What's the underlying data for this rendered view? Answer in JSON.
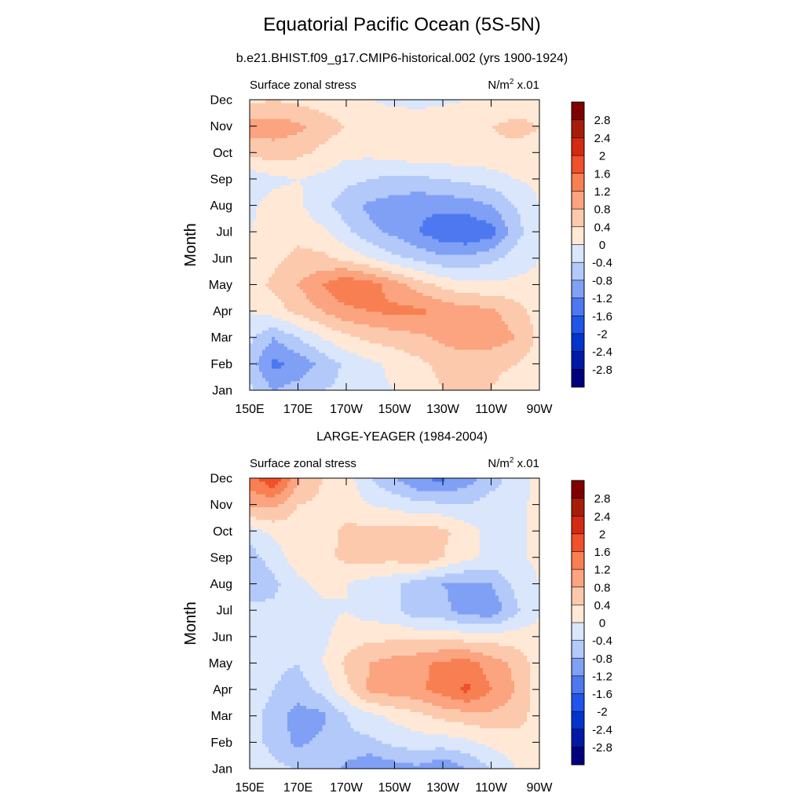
{
  "title": "Equatorial Pacific Ocean (5S-5N)",
  "colors": {
    "levels": [
      -2.8,
      -2.4,
      -2.0,
      -1.6,
      -1.2,
      -0.8,
      -0.4,
      0,
      0.4,
      0.8,
      1.2,
      1.6,
      2.0,
      2.4,
      2.8
    ],
    "fills": [
      "#00007f",
      "#001aa6",
      "#0034cc",
      "#1f55ea",
      "#4d78f0",
      "#7fa0f5",
      "#b3c9fa",
      "#d9e6fc",
      "#ffe8d6",
      "#fcc9ad",
      "#fba47f",
      "#f87f52",
      "#f0502a",
      "#d42a12",
      "#a81d0a",
      "#800000"
    ]
  },
  "chart_data": [
    {
      "type": "heatmap",
      "title": "b.e21.BHIST.f09_g17.CMIP6-historical.002 (yrs 1900-1924)",
      "left_string": "Surface zonal stress",
      "right_string": "N/m",
      "right_string_sup": "2",
      "right_string_tail": " x.01",
      "ylabel": "Month",
      "x_tick_labels": [
        "150E",
        "170E",
        "170W",
        "150W",
        "130W",
        "110W",
        "90W"
      ],
      "y_tick_labels": [
        "Jan",
        "Feb",
        "Mar",
        "Apr",
        "May",
        "Jun",
        "Jul",
        "Aug",
        "Sep",
        "Oct",
        "Nov",
        "Dec"
      ],
      "colorbar_labels": [
        "2.8",
        "2.4",
        "2",
        "1.6",
        "1.2",
        "0.8",
        "0.4",
        "0",
        "-0.4",
        "-0.8",
        "-1.2",
        "-1.6",
        "-2",
        "-2.4",
        "-2.8"
      ],
      "x": [
        150,
        160,
        170,
        180,
        190,
        200,
        210,
        220,
        230,
        240,
        250,
        260,
        270
      ],
      "y": [
        "Jan",
        "Feb",
        "Mar",
        "Apr",
        "May",
        "Jun",
        "Jul",
        "Aug",
        "Sep",
        "Oct",
        "Nov",
        "Dec"
      ],
      "z": [
        [
          -0.3,
          -0.8,
          -0.6,
          -0.4,
          -0.3,
          -0.1,
          0.0,
          0.2,
          0.4,
          0.4,
          0.4,
          0.2,
          0.1
        ],
        [
          -0.6,
          -1.3,
          -1.1,
          -0.7,
          -0.3,
          -0.1,
          0.1,
          0.3,
          0.5,
          0.6,
          0.5,
          0.4,
          0.2
        ],
        [
          -0.3,
          -0.8,
          -0.4,
          0.0,
          0.3,
          0.5,
          0.6,
          0.7,
          0.9,
          1.0,
          1.0,
          0.8,
          0.3
        ],
        [
          0.0,
          0.2,
          0.5,
          0.8,
          1.1,
          1.2,
          1.3,
          1.3,
          1.1,
          1.0,
          0.9,
          0.6,
          0.2
        ],
        [
          0.2,
          0.5,
          0.8,
          1.2,
          1.6,
          1.4,
          1.0,
          0.6,
          0.3,
          0.1,
          0.1,
          0.1,
          0.1
        ],
        [
          0.1,
          0.3,
          0.5,
          0.5,
          0.3,
          0.0,
          -0.3,
          -0.5,
          -0.7,
          -0.7,
          -0.5,
          -0.2,
          0.0
        ],
        [
          0.0,
          0.2,
          0.3,
          0.1,
          -0.3,
          -0.7,
          -0.9,
          -1.2,
          -1.5,
          -1.6,
          -1.4,
          -0.6,
          0.0
        ],
        [
          -0.1,
          0.2,
          0.1,
          -0.3,
          -0.6,
          -0.9,
          -1.0,
          -1.1,
          -1.1,
          -1.0,
          -0.8,
          -0.4,
          0.0
        ],
        [
          -0.3,
          -0.1,
          0.0,
          -0.1,
          -0.3,
          -0.4,
          -0.5,
          -0.5,
          -0.4,
          -0.3,
          -0.2,
          0.0,
          0.1
        ],
        [
          0.5,
          0.6,
          0.5,
          0.3,
          0.1,
          0.1,
          0.2,
          0.3,
          0.3,
          0.3,
          0.3,
          0.3,
          0.3
        ],
        [
          1.0,
          1.0,
          0.9,
          0.6,
          0.4,
          0.3,
          0.3,
          0.4,
          0.4,
          0.4,
          0.4,
          0.5,
          0.4
        ],
        [
          0.3,
          0.4,
          0.3,
          0.2,
          0.1,
          0.0,
          -0.1,
          -0.2,
          -0.1,
          0.0,
          0.1,
          0.2,
          0.2
        ]
      ]
    },
    {
      "type": "heatmap",
      "title": "LARGE-YEAGER (1984-2004)",
      "left_string": "Surface zonal stress",
      "right_string": "N/m",
      "right_string_sup": "2",
      "right_string_tail": " x.01",
      "ylabel": "Month",
      "x_tick_labels": [
        "150E",
        "170E",
        "170W",
        "150W",
        "130W",
        "110W",
        "90W"
      ],
      "y_tick_labels": [
        "Jan",
        "Feb",
        "Mar",
        "Apr",
        "May",
        "Jun",
        "Jul",
        "Aug",
        "Sep",
        "Oct",
        "Nov",
        "Dec"
      ],
      "colorbar_labels": [
        "2.8",
        "2.4",
        "2",
        "1.6",
        "1.2",
        "0.8",
        "0.4",
        "0",
        "-0.4",
        "-0.8",
        "-1.2",
        "-1.6",
        "-2",
        "-2.4",
        "-2.8"
      ],
      "x": [
        150,
        160,
        170,
        180,
        190,
        200,
        210,
        220,
        230,
        240,
        250,
        260,
        270
      ],
      "y": [
        "Jan",
        "Feb",
        "Mar",
        "Apr",
        "May",
        "Jun",
        "Jul",
        "Aug",
        "Sep",
        "Oct",
        "Nov",
        "Dec"
      ],
      "z": [
        [
          -0.1,
          -0.3,
          -0.4,
          -0.4,
          -0.9,
          -1.2,
          -1.0,
          -0.9,
          -1.2,
          -0.8,
          -0.4,
          0.0,
          0.1
        ],
        [
          -0.3,
          -0.5,
          -0.9,
          -0.7,
          -0.5,
          -0.5,
          -0.3,
          -0.2,
          -0.2,
          -0.1,
          0.1,
          0.2,
          0.2
        ],
        [
          -0.2,
          -0.6,
          -1.0,
          -0.9,
          -0.4,
          -0.1,
          0.1,
          0.3,
          0.5,
          0.6,
          0.7,
          0.6,
          0.2
        ],
        [
          -0.1,
          -0.4,
          -0.6,
          -0.3,
          0.3,
          0.9,
          1.0,
          1.1,
          1.4,
          1.7,
          1.2,
          0.8,
          0.2
        ],
        [
          -0.1,
          -0.3,
          -0.4,
          0.0,
          0.5,
          0.8,
          1.0,
          1.1,
          1.3,
          1.4,
          1.0,
          0.7,
          0.2
        ],
        [
          -0.1,
          -0.3,
          -0.4,
          -0.1,
          0.2,
          0.3,
          0.3,
          0.3,
          0.3,
          0.2,
          0.2,
          0.2,
          0.1
        ],
        [
          -0.2,
          -0.3,
          -0.2,
          -0.1,
          0.0,
          -0.2,
          -0.3,
          -0.7,
          -0.7,
          -1.0,
          -1.1,
          -0.5,
          0.0
        ],
        [
          -0.8,
          -0.5,
          -0.1,
          0.1,
          0.0,
          -0.2,
          -0.3,
          -0.7,
          -0.8,
          -0.9,
          -0.8,
          -0.3,
          0.0
        ],
        [
          -0.6,
          -0.2,
          0.2,
          0.3,
          0.5,
          0.6,
          0.5,
          0.8,
          0.4,
          0.1,
          -0.1,
          -0.1,
          0.1
        ],
        [
          -0.2,
          0.1,
          0.2,
          0.2,
          0.5,
          0.5,
          0.5,
          0.6,
          0.5,
          0.2,
          -0.2,
          -0.2,
          0.2
        ],
        [
          0.9,
          0.9,
          0.4,
          0.3,
          0.2,
          0.0,
          -0.1,
          -0.3,
          -0.3,
          -0.4,
          -0.2,
          -0.1,
          0.1
        ],
        [
          1.4,
          2.0,
          0.9,
          0.4,
          0.2,
          -0.4,
          -0.8,
          -1.2,
          -1.3,
          -1.0,
          -0.6,
          -0.2,
          0.1
        ]
      ]
    }
  ]
}
